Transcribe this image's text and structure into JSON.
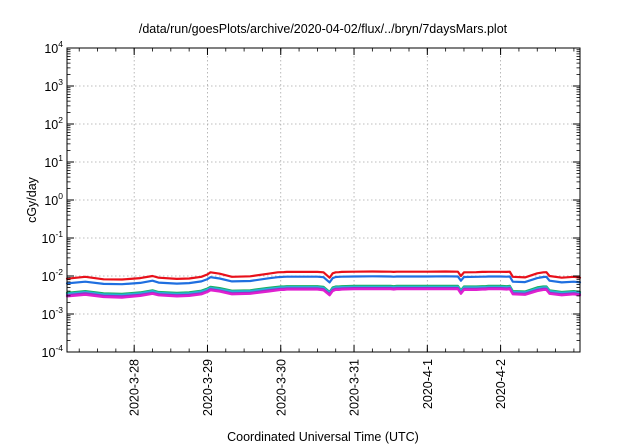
{
  "chart_data": {
    "type": "line",
    "title": "/data/run/goesPlots/archive/2020-04-02/flux/../bryn/7daysMars.plot",
    "xlabel": "Coordinated Universal Time (UTC)",
    "ylabel": "cGy/day",
    "yscale": "log",
    "ylim": [
      0.0001,
      10000
    ],
    "xlim": [
      "2020-03-27 02:00",
      "2020-04-03 02:00"
    ],
    "grid": true,
    "legend": "none",
    "y_ticks": [
      {
        "base": "10",
        "exp": "-4"
      },
      {
        "base": "10",
        "exp": "-3"
      },
      {
        "base": "10",
        "exp": "-2"
      },
      {
        "base": "10",
        "exp": "-1"
      },
      {
        "base": "10",
        "exp": "0"
      },
      {
        "base": "10",
        "exp": "1"
      },
      {
        "base": "10",
        "exp": "2"
      },
      {
        "base": "10",
        "exp": "3"
      },
      {
        "base": "10",
        "exp": "4"
      }
    ],
    "x_ticks": [
      "2020-3-28",
      "2020-3-29",
      "2020-3-30",
      "2020-3-31",
      "2020-4-1",
      "2020-4-2"
    ],
    "x": [
      "2020-03-27 02:00",
      "2020-03-27 08:00",
      "2020-03-27 14:00",
      "2020-03-27 20:00",
      "2020-03-28 02:00",
      "2020-03-28 06:00",
      "2020-03-28 08:00",
      "2020-03-28 14:00",
      "2020-03-28 18:00",
      "2020-03-28 22:00",
      "2020-03-29 00:00",
      "2020-03-29 01:00",
      "2020-03-29 04:00",
      "2020-03-29 08:00",
      "2020-03-29 14:00",
      "2020-03-29 20:00",
      "2020-03-29 23:00",
      "2020-03-30 00:00",
      "2020-03-30 01:00",
      "2020-03-30 02:00",
      "2020-03-30 06:00",
      "2020-03-30 12:00",
      "2020-03-30 14:00",
      "2020-03-30 16:00",
      "2020-03-30 17:00",
      "2020-03-30 18:00",
      "2020-03-30 19:00",
      "2020-03-30 20:00",
      "2020-03-31 00:00",
      "2020-03-31 06:00",
      "2020-03-31 12:00",
      "2020-03-31 13:00",
      "2020-03-31 14:00",
      "2020-03-31 15:00",
      "2020-03-31 16:00",
      "2020-04-01 00:00",
      "2020-04-01 06:00",
      "2020-04-01 10:00",
      "2020-04-01 11:00",
      "2020-04-01 12:00",
      "2020-04-01 16:00",
      "2020-04-01 18:00",
      "2020-04-01 19:00",
      "2020-04-01 20:00",
      "2020-04-02 00:00",
      "2020-04-02 02:00",
      "2020-04-02 03:00",
      "2020-04-02 04:00",
      "2020-04-02 08:00",
      "2020-04-02 12:00",
      "2020-04-02 14:00",
      "2020-04-02 15:00",
      "2020-04-02 16:00",
      "2020-04-02 20:00",
      "2020-04-03 00:00",
      "2020-04-03 02:00"
    ],
    "series": [
      {
        "color": "#e8101a",
        "values": [
          0.0085,
          0.0095,
          0.0082,
          0.0081,
          0.0088,
          0.01,
          0.009,
          0.0084,
          0.0086,
          0.0095,
          0.011,
          0.0125,
          0.0115,
          0.0095,
          0.0098,
          0.0115,
          0.0125,
          0.0126,
          0.0127,
          0.0128,
          0.0128,
          0.0128,
          0.0125,
          0.009,
          0.0118,
          0.0125,
          0.0126,
          0.0128,
          0.013,
          0.0131,
          0.013,
          0.0128,
          0.013,
          0.013,
          0.013,
          0.013,
          0.0131,
          0.013,
          0.01,
          0.0125,
          0.0126,
          0.0128,
          0.0128,
          0.0129,
          0.0129,
          0.0128,
          0.013,
          0.0095,
          0.0092,
          0.0118,
          0.0125,
          0.0126,
          0.01,
          0.009,
          0.0095,
          0.009
        ]
      },
      {
        "color": "#1f6fe0",
        "values": [
          0.0064,
          0.0071,
          0.0062,
          0.0061,
          0.0066,
          0.0075,
          0.0067,
          0.0063,
          0.0065,
          0.0072,
          0.0083,
          0.0093,
          0.0086,
          0.0072,
          0.0074,
          0.0087,
          0.0093,
          0.0094,
          0.0095,
          0.0096,
          0.0096,
          0.0096,
          0.0093,
          0.0068,
          0.0088,
          0.0094,
          0.0095,
          0.0096,
          0.0097,
          0.0098,
          0.0097,
          0.0096,
          0.0097,
          0.0097,
          0.0097,
          0.0097,
          0.0098,
          0.0097,
          0.0075,
          0.0094,
          0.0095,
          0.0096,
          0.0096,
          0.0097,
          0.0097,
          0.0096,
          0.0097,
          0.0071,
          0.0069,
          0.0088,
          0.0094,
          0.0095,
          0.0075,
          0.0068,
          0.0071,
          0.0068
        ]
      },
      {
        "color": "#18b060",
        "values": [
          0.0036,
          0.004,
          0.0035,
          0.0034,
          0.0037,
          0.0042,
          0.0038,
          0.0036,
          0.0037,
          0.0041,
          0.0047,
          0.0052,
          0.0048,
          0.0041,
          0.0042,
          0.0049,
          0.0052,
          0.0053,
          0.0053,
          0.0054,
          0.0054,
          0.0054,
          0.0052,
          0.0038,
          0.005,
          0.0053,
          0.0053,
          0.0054,
          0.0055,
          0.0055,
          0.0055,
          0.0054,
          0.0055,
          0.0055,
          0.0055,
          0.0055,
          0.0055,
          0.0055,
          0.0042,
          0.0053,
          0.0053,
          0.0054,
          0.0054,
          0.0055,
          0.0055,
          0.0054,
          0.0055,
          0.004,
          0.0039,
          0.005,
          0.0053,
          0.0053,
          0.0042,
          0.0038,
          0.004,
          0.0038
        ]
      },
      {
        "color": "#28b0d8",
        "values": [
          0.0034,
          0.0038,
          0.0033,
          0.0032,
          0.0035,
          0.004,
          0.0036,
          0.0034,
          0.0035,
          0.0039,
          0.0044,
          0.0049,
          0.0045,
          0.0039,
          0.004,
          0.0046,
          0.0049,
          0.005,
          0.005,
          0.0051,
          0.0051,
          0.0051,
          0.0049,
          0.0036,
          0.0047,
          0.005,
          0.005,
          0.0051,
          0.0052,
          0.0052,
          0.0052,
          0.0051,
          0.0052,
          0.0052,
          0.0052,
          0.0052,
          0.0052,
          0.0052,
          0.004,
          0.005,
          0.005,
          0.0051,
          0.0051,
          0.0052,
          0.0052,
          0.0051,
          0.0052,
          0.0038,
          0.0037,
          0.0047,
          0.005,
          0.005,
          0.004,
          0.0036,
          0.0038,
          0.0036
        ]
      },
      {
        "color": "#a02cc8",
        "values": [
          0.0031,
          0.0035,
          0.003,
          0.0029,
          0.0032,
          0.0036,
          0.0033,
          0.0031,
          0.0032,
          0.0035,
          0.004,
          0.0045,
          0.0041,
          0.0035,
          0.0036,
          0.0042,
          0.0045,
          0.0046,
          0.0046,
          0.0047,
          0.0047,
          0.0047,
          0.0045,
          0.0033,
          0.0043,
          0.0046,
          0.0046,
          0.0047,
          0.0048,
          0.0048,
          0.0048,
          0.0047,
          0.0048,
          0.0048,
          0.0048,
          0.0048,
          0.0048,
          0.0048,
          0.0036,
          0.0046,
          0.0046,
          0.0047,
          0.0047,
          0.0048,
          0.0048,
          0.0047,
          0.0048,
          0.0035,
          0.0034,
          0.0043,
          0.0046,
          0.0046,
          0.0036,
          0.0033,
          0.0035,
          0.0033
        ]
      },
      {
        "color": "#e020d0",
        "values": [
          0.0029,
          0.0032,
          0.0028,
          0.0027,
          0.003,
          0.0034,
          0.0031,
          0.0029,
          0.003,
          0.0033,
          0.0038,
          0.0042,
          0.0039,
          0.0033,
          0.0034,
          0.0039,
          0.0042,
          0.0043,
          0.0043,
          0.0044,
          0.0044,
          0.0044,
          0.0042,
          0.0031,
          0.004,
          0.0043,
          0.0043,
          0.0044,
          0.0045,
          0.0045,
          0.0045,
          0.0044,
          0.0045,
          0.0045,
          0.0045,
          0.0045,
          0.0045,
          0.0045,
          0.0034,
          0.0043,
          0.0043,
          0.0044,
          0.0044,
          0.0045,
          0.0045,
          0.0044,
          0.0045,
          0.0033,
          0.0032,
          0.004,
          0.0043,
          0.0043,
          0.0034,
          0.0031,
          0.0033,
          0.0031
        ]
      }
    ]
  }
}
